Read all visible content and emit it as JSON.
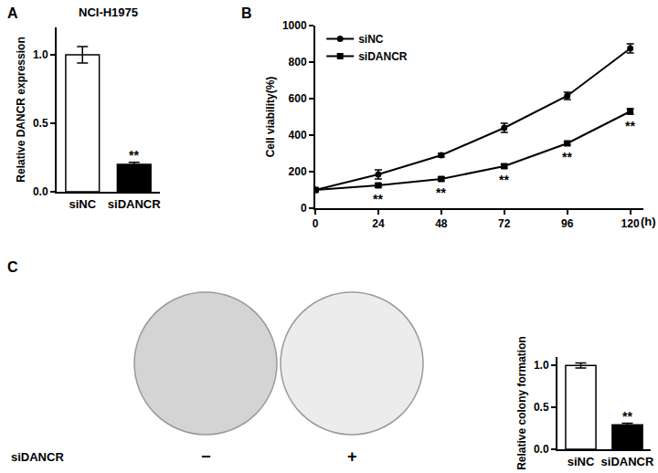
{
  "chart_data": [
    {
      "panel": "A",
      "type": "bar",
      "title": "NCI-H1975",
      "y_label": "Relative DANCR expression",
      "categories": [
        "siNC",
        "siDANCR"
      ],
      "values": [
        1.0,
        0.2
      ],
      "errors": [
        0.06,
        0.015
      ],
      "colors": [
        "#ffffff",
        "#000000"
      ],
      "ylim": [
        0,
        1.2
      ],
      "yticks": [
        {
          "value": 0,
          "label": "0.0"
        },
        {
          "value": 0.5,
          "label": "0.5"
        },
        {
          "value": 1,
          "label": "1.0"
        }
      ],
      "grid": false,
      "annotations": [
        {
          "category": "siDANCR",
          "text": "**"
        }
      ]
    },
    {
      "panel": "B",
      "type": "line",
      "y_label": "Cell viability(%)",
      "x_label": "(h)",
      "x": [
        0,
        24,
        48,
        72,
        96,
        120
      ],
      "series": [
        {
          "name": "siNC",
          "color": "#000000",
          "marker": "circle",
          "values": [
            100,
            185,
            290,
            440,
            615,
            875
          ],
          "errors": [
            10,
            25,
            10,
            25,
            20,
            25
          ]
        },
        {
          "name": "siDANCR",
          "color": "#000000",
          "marker": "square",
          "values": [
            100,
            125,
            160,
            230,
            355,
            530
          ],
          "errors": [
            5,
            10,
            10,
            10,
            10,
            15
          ]
        }
      ],
      "xlim": [
        0,
        125
      ],
      "xticks": [
        0,
        24,
        48,
        72,
        96,
        120
      ],
      "ylim": [
        0,
        1000
      ],
      "yticks": [
        0,
        200,
        400,
        600,
        800,
        1000
      ],
      "grid": false,
      "legend": "upper left",
      "annotations": [
        {
          "x": 24,
          "series": "siDANCR",
          "text": "**"
        },
        {
          "x": 48,
          "series": "siDANCR",
          "text": "**"
        },
        {
          "x": 72,
          "series": "siDANCR",
          "text": "**"
        },
        {
          "x": 96,
          "series": "siDANCR",
          "text": "**"
        },
        {
          "x": 120,
          "series": "siDANCR",
          "text": "**"
        }
      ]
    },
    {
      "type": "bar",
      "y_label": "Relative colony formation",
      "categories": [
        "siNC",
        "siDANCR"
      ],
      "values": [
        1.0,
        0.29
      ],
      "errors": [
        0.03,
        0.02
      ],
      "colors": [
        "#ffffff",
        "#000000"
      ],
      "ylim": [
        0,
        1.1
      ],
      "yticks": [
        {
          "value": 0,
          "label": "0.0"
        },
        {
          "value": 0.5,
          "label": "0.5"
        },
        {
          "value": 1,
          "label": "1.0"
        }
      ],
      "grid": false,
      "annotations": [
        {
          "category": "siDANCR",
          "text": "**"
        }
      ]
    }
  ],
  "image": {
    "panel": "C",
    "row_label": "siDANCR",
    "conditions": [
      "−",
      "+"
    ]
  }
}
